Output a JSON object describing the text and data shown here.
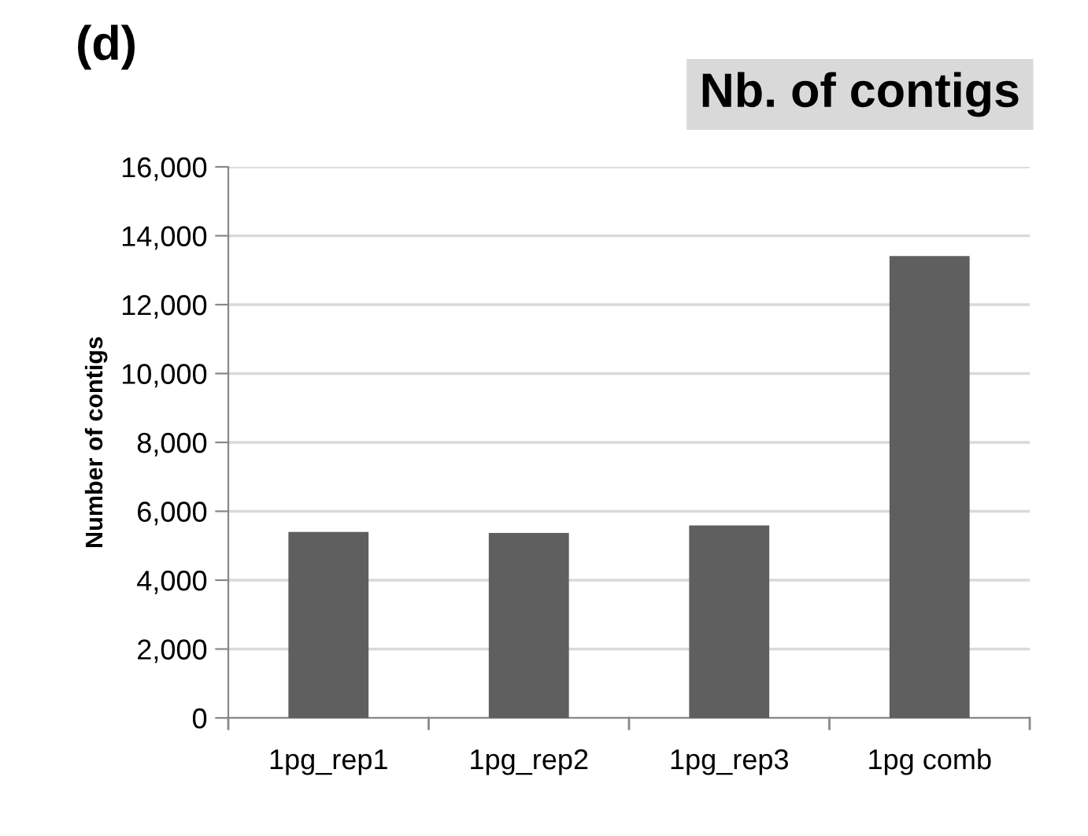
{
  "chart_data": {
    "type": "bar",
    "title": "Nb. of contigs",
    "annotations": [
      "(d)"
    ],
    "ylabel": "Number of contigs",
    "categories": [
      "1pg_rep1",
      "1pg_rep2",
      "1pg_rep3",
      "1pg comb"
    ],
    "values": [
      5400,
      5370,
      5590,
      13410
    ],
    "color": "#5f5f5f",
    "ylim": [
      0,
      16000
    ],
    "yticks": [
      {
        "value": 0,
        "label": "0"
      },
      {
        "value": 2000,
        "label": "2,000"
      },
      {
        "value": 4000,
        "label": "4,000"
      },
      {
        "value": 6000,
        "label": "6,000"
      },
      {
        "value": 8000,
        "label": "8,000"
      },
      {
        "value": 10000,
        "label": "10,000"
      },
      {
        "value": 12000,
        "label": "12,000"
      },
      {
        "value": 14000,
        "label": "14,000"
      },
      {
        "value": 16000,
        "label": "16,000"
      }
    ],
    "grid": "y"
  }
}
